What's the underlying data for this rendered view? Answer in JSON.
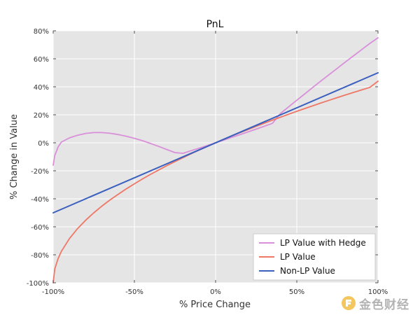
{
  "chart_data": {
    "type": "line",
    "title": "PnL",
    "xlabel": "% Price Change",
    "ylabel": "% Change in Value",
    "xlim": [
      -100,
      100
    ],
    "ylim": [
      -100,
      80
    ],
    "x_ticks": [
      -100,
      -50,
      0,
      50,
      100
    ],
    "x_tick_labels": [
      "-100%",
      "-50%",
      "0%",
      "50%",
      "100%"
    ],
    "y_ticks": [
      -100,
      -80,
      -60,
      -40,
      -20,
      0,
      20,
      40,
      60,
      80
    ],
    "y_tick_labels": [
      "-100%",
      "-80%",
      "-60%",
      "-40%",
      "-20%",
      "0%",
      "20%",
      "40%",
      "60%",
      "80%"
    ],
    "grid": true,
    "legend_position": "bottom-right",
    "series": [
      {
        "name": "LP Value with Hedge",
        "color": "#d98fd9",
        "x": [
          -100,
          -99,
          -97,
          -95,
          -90,
          -85,
          -80,
          -75,
          -70,
          -65,
          -60,
          -55,
          -50,
          -45,
          -40,
          -35,
          -30,
          -25,
          -20,
          -15,
          -10,
          -5,
          0,
          5,
          10,
          15,
          20,
          25,
          30,
          35,
          40,
          45,
          50,
          55,
          60,
          65,
          70,
          75,
          80,
          85,
          90,
          95,
          100
        ],
        "y": [
          -16,
          -9,
          -3,
          0.5,
          3.5,
          5.4,
          6.7,
          7.3,
          7.3,
          6.8,
          5.9,
          4.7,
          3.2,
          1.5,
          -0.5,
          -2.6,
          -4.8,
          -7,
          -7.5,
          -5.6,
          -3.8,
          -1.9,
          0,
          1.9,
          3.9,
          5.8,
          7.8,
          9.8,
          11.8,
          13.9,
          21,
          25.7,
          30.4,
          35,
          39.7,
          44.3,
          48.8,
          53.3,
          57.8,
          62.2,
          66.6,
          71,
          75
        ]
      },
      {
        "name": "LP Value",
        "color": "#ee7766",
        "x": [
          -100,
          -99,
          -97,
          -95,
          -90,
          -85,
          -80,
          -75,
          -70,
          -65,
          -60,
          -55,
          -50,
          -45,
          -40,
          -35,
          -30,
          -25,
          -20,
          -15,
          -10,
          -5,
          0,
          5,
          10,
          15,
          20,
          25,
          30,
          35,
          40,
          45,
          50,
          55,
          60,
          65,
          70,
          75,
          80,
          85,
          90,
          95,
          100
        ],
        "y": [
          -100,
          -90,
          -82.7,
          -77.6,
          -68.4,
          -61.3,
          -55.3,
          -50,
          -45.2,
          -40.8,
          -36.8,
          -32.9,
          -29.3,
          -25.8,
          -22.5,
          -19.4,
          -16.3,
          -13.4,
          -10.6,
          -7.8,
          -5.1,
          -2.5,
          0,
          2.5,
          4.9,
          7.2,
          9.5,
          11.8,
          14,
          16.2,
          18.3,
          20.4,
          22.5,
          24.5,
          26.5,
          28.5,
          30.4,
          32.3,
          34.2,
          36,
          37.8,
          39.6,
          44
        ]
      },
      {
        "name": "Non-LP Value",
        "color": "#3a5fbf",
        "x": [
          -100,
          100
        ],
        "y": [
          -50,
          50
        ]
      }
    ]
  },
  "watermark": {
    "text": "金色财经",
    "icon": "gold-coin-logo"
  }
}
